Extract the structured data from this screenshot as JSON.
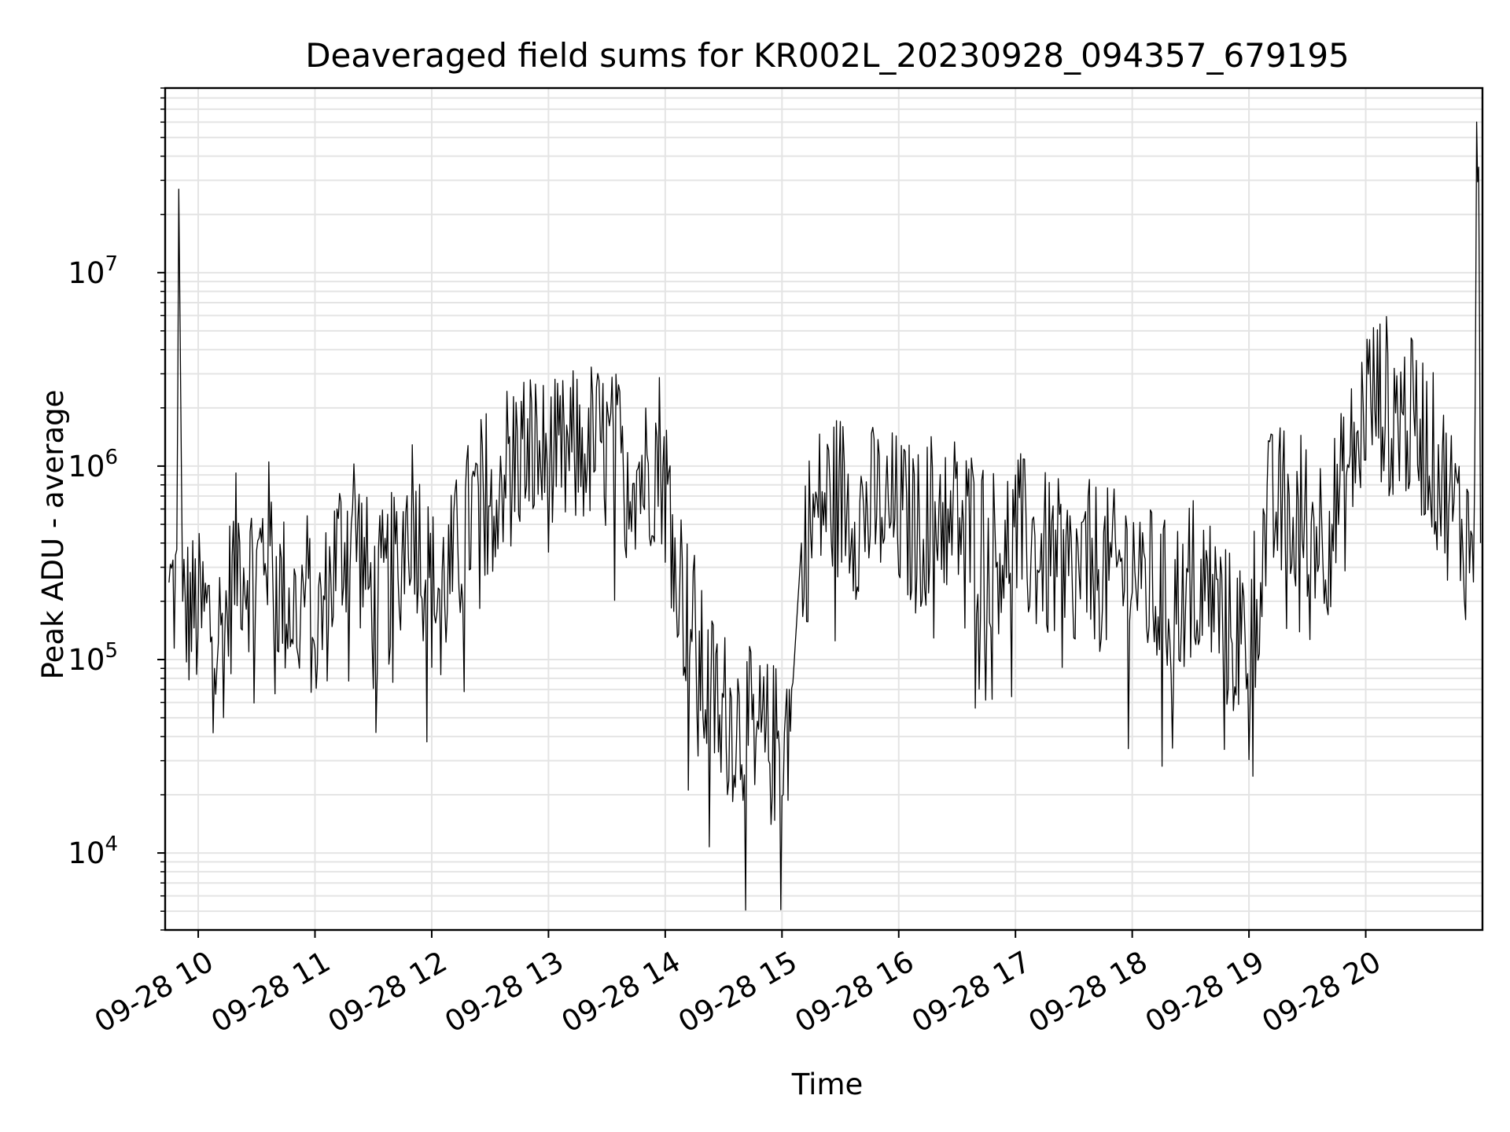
{
  "chart_data": {
    "type": "line",
    "title": "Deaveraged field sums for KR002L_20230928_094357_679195",
    "xlabel": "Time",
    "ylabel": "Peak ADU - average",
    "yscale": "log",
    "ylim": [
      4000,
      90000000
    ],
    "xlim": [
      "2023-09-28 09:43",
      "2023-09-28 21:00"
    ],
    "x_ticks": [
      {
        "label": "09-28 10",
        "value": "2023-09-28 10:00"
      },
      {
        "label": "09-28 11",
        "value": "2023-09-28 11:00"
      },
      {
        "label": "09-28 12",
        "value": "2023-09-28 12:00"
      },
      {
        "label": "09-28 13",
        "value": "2023-09-28 13:00"
      },
      {
        "label": "09-28 14",
        "value": "2023-09-28 14:00"
      },
      {
        "label": "09-28 15",
        "value": "2023-09-28 15:00"
      },
      {
        "label": "09-28 16",
        "value": "2023-09-28 16:00"
      },
      {
        "label": "09-28 17",
        "value": "2023-09-28 17:00"
      },
      {
        "label": "09-28 18",
        "value": "2023-09-28 18:00"
      },
      {
        "label": "09-28 19",
        "value": "2023-09-28 19:00"
      },
      {
        "label": "09-28 20",
        "value": "2023-09-28 20:00"
      }
    ],
    "y_ticks": [
      {
        "base": "10",
        "exp": "4",
        "value": 10000
      },
      {
        "base": "10",
        "exp": "5",
        "value": 100000
      },
      {
        "base": "10",
        "exp": "6",
        "value": 1000000
      },
      {
        "base": "10",
        "exp": "7",
        "value": 10000000
      }
    ],
    "grid": true,
    "series": [
      {
        "color": "#000000",
        "x": [
          "2023-09-28 09:45",
          "2023-09-28 09:49",
          "2023-09-28 09:50",
          "2023-09-28 09:52",
          "2023-09-28 10:05",
          "2023-09-28 10:13",
          "2023-09-28 10:20",
          "2023-09-28 10:30",
          "2023-09-28 10:35",
          "2023-09-28 10:42",
          "2023-09-28 10:50",
          "2023-09-28 10:56",
          "2023-09-28 11:00",
          "2023-09-28 11:05",
          "2023-09-28 11:10",
          "2023-09-28 11:20",
          "2023-09-28 11:30",
          "2023-09-28 11:40",
          "2023-09-28 11:50",
          "2023-09-28 11:55",
          "2023-09-28 12:00",
          "2023-09-28 12:10",
          "2023-09-28 12:20",
          "2023-09-28 12:30",
          "2023-09-28 12:40",
          "2023-09-28 12:50",
          "2023-09-28 13:00",
          "2023-09-28 13:10",
          "2023-09-28 13:20",
          "2023-09-28 13:30",
          "2023-09-28 13:40",
          "2023-09-28 13:50",
          "2023-09-28 13:57",
          "2023-09-28 14:00",
          "2023-09-28 14:05",
          "2023-09-28 14:10",
          "2023-09-28 14:15",
          "2023-09-28 14:20",
          "2023-09-28 14:30",
          "2023-09-28 14:40",
          "2023-09-28 14:50",
          "2023-09-28 14:55",
          "2023-09-28 15:00",
          "2023-09-28 15:05",
          "2023-09-28 15:10",
          "2023-09-28 15:20",
          "2023-09-28 15:30",
          "2023-09-28 15:40",
          "2023-09-28 15:50",
          "2023-09-28 16:00",
          "2023-09-28 16:10",
          "2023-09-28 16:20",
          "2023-09-28 16:30",
          "2023-09-28 16:40",
          "2023-09-28 16:50",
          "2023-09-28 17:00",
          "2023-09-28 17:10",
          "2023-09-28 17:20",
          "2023-09-28 17:30",
          "2023-09-28 17:40",
          "2023-09-28 17:50",
          "2023-09-28 18:00",
          "2023-09-28 18:10",
          "2023-09-28 18:20",
          "2023-09-28 18:30",
          "2023-09-28 18:40",
          "2023-09-28 18:50",
          "2023-09-28 19:00",
          "2023-09-28 19:10",
          "2023-09-28 19:20",
          "2023-09-28 19:30",
          "2023-09-28 19:40",
          "2023-09-28 19:50",
          "2023-09-28 20:00",
          "2023-09-28 20:10",
          "2023-09-28 20:20",
          "2023-09-28 20:30",
          "2023-09-28 20:40",
          "2023-09-28 20:50",
          "2023-09-28 20:56",
          "2023-09-28 20:57",
          "2023-09-28 20:58",
          "2023-09-28 20:59"
        ],
        "y": [
          250000,
          250000,
          27000000,
          200000,
          180000,
          150000,
          400000,
          300000,
          500000,
          250000,
          200000,
          250000,
          150000,
          200000,
          350000,
          600000,
          200000,
          300000,
          700000,
          400000,
          250000,
          300000,
          600000,
          900000,
          1200000,
          1400000,
          1100000,
          1200000,
          1500000,
          1300000,
          1200000,
          1000000,
          1400000,
          900000,
          500000,
          200000,
          150000,
          80000,
          60000,
          50000,
          40000,
          40000,
          40000,
          60000,
          400000,
          700000,
          800000,
          600000,
          700000,
          600000,
          500000,
          700000,
          600000,
          500000,
          400000,
          500000,
          400000,
          350000,
          300000,
          350000,
          300000,
          350000,
          250000,
          200000,
          300000,
          250000,
          150000,
          150000,
          600000,
          700000,
          600000,
          500000,
          900000,
          2500000,
          2500000,
          2000000,
          1600000,
          900000,
          500000,
          450000,
          60000000,
          65000000,
          400000
        ]
      }
    ]
  }
}
